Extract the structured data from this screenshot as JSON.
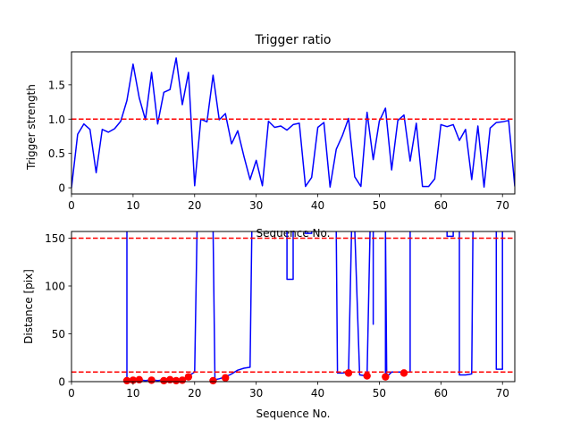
{
  "figure": {
    "background": "#ffffff"
  },
  "chart_data": [
    {
      "type": "line",
      "title": "Trigger ratio",
      "xlabel": "Sequence No.",
      "ylabel": "Trigger strength",
      "xlim": [
        0,
        72
      ],
      "ylim": [
        -0.09,
        1.98
      ],
      "xticks": [
        0,
        10,
        20,
        30,
        40,
        50,
        60,
        70
      ],
      "yticks": [
        0,
        0.5,
        1.0,
        1.5
      ],
      "ytick_labels": [
        "0",
        "0.5",
        "1.0",
        "1.5"
      ],
      "grid": false,
      "colors": {
        "line": "#0000ff",
        "threshold": "#ff0000"
      },
      "series": [
        {
          "x": [
            0,
            1,
            2,
            3,
            4,
            5,
            6,
            7,
            8,
            9,
            10,
            11,
            12,
            13,
            14,
            15,
            16,
            17,
            18,
            19,
            20,
            21,
            22,
            23,
            24,
            25,
            26,
            27,
            28,
            29,
            30,
            31,
            32,
            33,
            34,
            35,
            36,
            37,
            38,
            39,
            40,
            41,
            42,
            43,
            44,
            45,
            46,
            47,
            48,
            49,
            50,
            51,
            52,
            53,
            54,
            55,
            56,
            57,
            58,
            59,
            60,
            61,
            62,
            63,
            64,
            65,
            66,
            67,
            68,
            69,
            70,
            71,
            72
          ],
          "values": [
            0.0,
            0.78,
            0.93,
            0.85,
            0.22,
            0.85,
            0.81,
            0.86,
            0.97,
            1.27,
            1.8,
            1.31,
            0.99,
            1.68,
            0.93,
            1.39,
            1.43,
            1.89,
            1.21,
            1.68,
            0.03,
            1.0,
            0.96,
            1.64,
            0.99,
            1.08,
            0.64,
            0.83,
            0.46,
            0.12,
            0.4,
            0.03,
            0.97,
            0.88,
            0.9,
            0.84,
            0.92,
            0.94,
            0.02,
            0.15,
            0.88,
            0.95,
            0.01,
            0.56,
            0.76,
            1.01,
            0.16,
            0.02,
            1.1,
            0.41,
            0.97,
            1.16,
            0.26,
            0.98,
            1.06,
            0.39,
            0.94,
            0.02,
            0.02,
            0.13,
            0.92,
            0.89,
            0.92,
            0.69,
            0.85,
            0.12,
            0.9,
            0.01,
            0.87,
            0.95,
            0.96,
            0.98,
            0.02
          ]
        }
      ],
      "reference_lines": [
        {
          "axis": "y",
          "value": 1.0,
          "style": "dashed"
        }
      ]
    },
    {
      "type": "line",
      "title": "",
      "xlabel": "Sequence No.",
      "ylabel": "Distance [pix]",
      "xlim": [
        0,
        72
      ],
      "ylim": [
        0,
        157
      ],
      "xticks": [
        0,
        10,
        20,
        30,
        40,
        50,
        60,
        70
      ],
      "yticks": [
        0,
        50,
        100,
        150
      ],
      "grid": false,
      "colors": {
        "line": "#0000ff",
        "threshold": "#ff0000",
        "markers": "#ff0000"
      },
      "series": [
        {
          "x": [
            9,
            9,
            9.4,
            10,
            11,
            12,
            13,
            14,
            15,
            16,
            17,
            18,
            19,
            20,
            20.4,
            20.8,
            23,
            23.3,
            24,
            25,
            26,
            27,
            28,
            29,
            29.3,
            35,
            35,
            36,
            36,
            38,
            38,
            39,
            39,
            43,
            43.2,
            44,
            45,
            45.5,
            46,
            46.8,
            48,
            48.5,
            49,
            49,
            49,
            49.3,
            51,
            51,
            51,
            51.2,
            52,
            53,
            54,
            55,
            55,
            61,
            61,
            62,
            62,
            63,
            63,
            64,
            65,
            65,
            65.2,
            69,
            69,
            70,
            70,
            71
          ],
          "values": [
            160,
            2,
            1,
            1,
            2,
            1,
            2,
            1,
            2,
            3,
            1,
            2,
            6,
            10,
            160,
            160,
            160,
            2,
            3,
            5,
            8,
            12,
            14,
            15,
            160,
            160,
            107,
            107,
            160,
            160,
            155,
            155,
            160,
            160,
            9,
            9,
            10,
            160,
            160,
            7,
            6,
            160,
            160,
            60,
            160,
            160,
            160,
            5,
            160,
            5,
            10,
            10,
            10,
            10,
            160,
            160,
            152,
            152,
            160,
            160,
            7,
            7,
            8,
            8,
            160,
            160,
            13,
            13,
            160,
            160
          ]
        }
      ],
      "markers": {
        "x": [
          9,
          10,
          11,
          13,
          15,
          16,
          17,
          18,
          19,
          23,
          25,
          45,
          48,
          51,
          54
        ],
        "values": [
          1,
          1.5,
          2,
          1.5,
          1,
          2,
          1,
          1.5,
          5,
          1,
          4,
          9,
          6,
          5,
          9
        ]
      },
      "reference_lines": [
        {
          "axis": "y",
          "value": 150,
          "style": "dashed"
        },
        {
          "axis": "y",
          "value": 10,
          "style": "dashed"
        }
      ]
    }
  ]
}
